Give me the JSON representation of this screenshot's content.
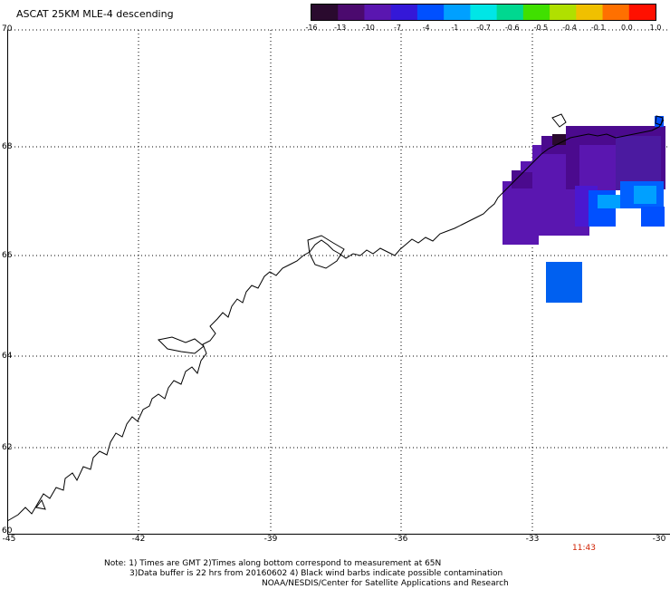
{
  "title": "ASCAT 25KM MLE-4 descending",
  "colorbar": {
    "labels": [
      "-16",
      "-13",
      "-10",
      "-7",
      "-4",
      "-1",
      "-0.7",
      "-0.6",
      "-0.5",
      "-0.4",
      "-0.1",
      "0.0",
      "1.0"
    ],
    "colors": [
      "#2a0a2e",
      "#4b0a6e",
      "#5a16b0",
      "#3418d8",
      "#0050ff",
      "#00a0ff",
      "#00e6e6",
      "#00d890",
      "#40e000",
      "#b0e000",
      "#f0c000",
      "#ff7000",
      "#ff1000"
    ]
  },
  "map": {
    "lat_labels": [
      "70",
      "68",
      "66",
      "64",
      "62",
      "60"
    ],
    "lon_labels": [
      "-45",
      "-42",
      "-39",
      "-36",
      "-33",
      "-30"
    ]
  },
  "notes": {
    "line1": "Note: 1) Times are GMT 2)Times along bottom correspond to measurement at 65N",
    "line2": "3)Data buffer is 22 hrs from 20160602 4) Black wind barbs indicate possible contamination",
    "line3": "NOAA/NESDIS/Center for Satellite Applications and Research"
  },
  "time_label": "11:43"
}
